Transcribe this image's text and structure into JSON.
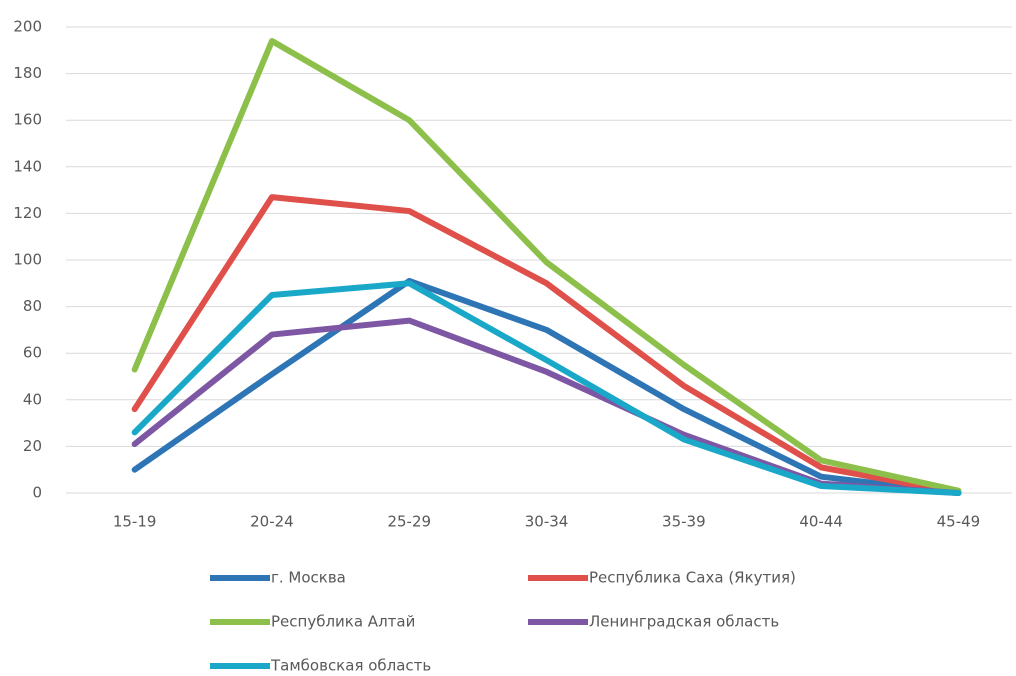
{
  "chart_data": {
    "type": "line",
    "categories": [
      "15-19",
      "20-24",
      "25-29",
      "30-34",
      "35-39",
      "40-44",
      "45-49"
    ],
    "series": [
      {
        "name": "г. Москва",
        "color": "#2e75b6",
        "values": [
          10,
          51,
          91,
          70,
          36,
          7,
          0
        ]
      },
      {
        "name": "Республика Саха (Якутия)",
        "color": "#e0504b",
        "values": [
          36,
          127,
          121,
          90,
          46,
          11,
          0
        ]
      },
      {
        "name": "Республика Алтай",
        "color": "#8cc04a",
        "values": [
          53,
          194,
          160,
          99,
          55,
          14,
          1
        ]
      },
      {
        "name": "Ленинградская область",
        "color": "#7d57a3",
        "values": [
          21,
          68,
          74,
          52,
          25,
          4,
          0
        ]
      },
      {
        "name": "Тамбовская область",
        "color": "#1aa8c9",
        "values": [
          26,
          85,
          90,
          57,
          23,
          3,
          0
        ]
      }
    ],
    "ylim": [
      0,
      200
    ],
    "yticks": [
      0,
      20,
      40,
      60,
      80,
      100,
      120,
      140,
      160,
      180,
      200
    ],
    "grid": true
  }
}
